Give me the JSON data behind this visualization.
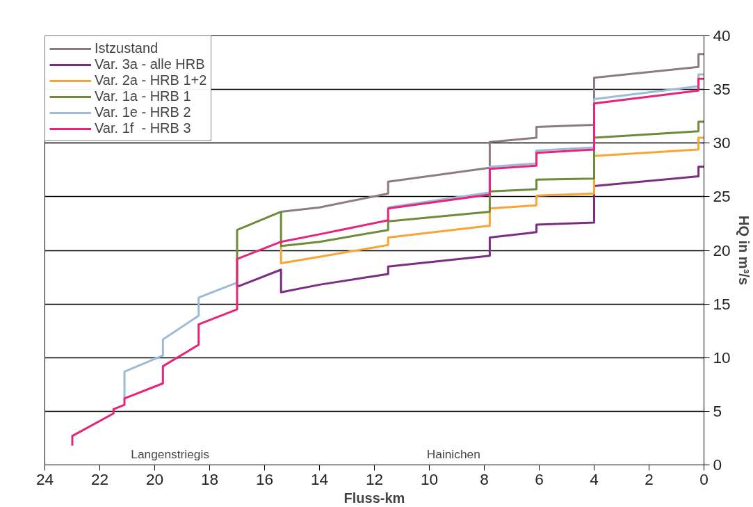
{
  "chart_data": {
    "type": "line",
    "xlabel": "Fluss-km",
    "ylabel": "HQ in m³/s",
    "xlim": [
      24,
      0
    ],
    "xticks": [
      24,
      22,
      20,
      18,
      16,
      14,
      12,
      10,
      8,
      6,
      4,
      2,
      0
    ],
    "ylim": [
      0,
      40
    ],
    "yticks": [
      0,
      5,
      10,
      15,
      20,
      25,
      30,
      35,
      40
    ],
    "grid": "y",
    "legend": "top left",
    "line_style": "solid",
    "series": [
      {
        "name": "Istzustand",
        "color": "#8c7b86",
        "x": [
          15.4,
          14,
          11.5,
          11.5,
          7.8,
          7.8,
          6.1,
          6.1,
          4.0,
          4.0,
          0.2,
          0.2,
          0
        ],
        "values": [
          23.6,
          24.0,
          25.3,
          26.4,
          27.7,
          30.1,
          30.5,
          31.5,
          31.7,
          36.1,
          37.1,
          38.3,
          38.3
        ]
      },
      {
        "name": "Var. 3a - alle HRB",
        "color": "#7b2d83",
        "x": [
          17,
          15.4,
          15.4,
          14,
          11.5,
          11.5,
          7.8,
          7.8,
          6.1,
          6.1,
          4.0,
          4.0,
          0.2,
          0.2,
          0
        ],
        "values": [
          16.6,
          18.2,
          16.1,
          16.8,
          17.8,
          18.5,
          19.5,
          21.2,
          21.7,
          22.4,
          22.6,
          26.0,
          26.9,
          27.8,
          27.8
        ]
      },
      {
        "name": "Var. 2a - HRB 1+2",
        "color": "#f7a533",
        "x": [
          15.4,
          15.4,
          14,
          11.5,
          11.5,
          7.8,
          7.8,
          6.1,
          6.1,
          4.0,
          4.0,
          0.2,
          0.2,
          0
        ],
        "values": [
          20.4,
          18.8,
          19.4,
          20.5,
          21.2,
          22.3,
          23.9,
          24.2,
          25.1,
          25.3,
          28.8,
          29.4,
          30.5,
          30.5
        ]
      },
      {
        "name": "Var. 1a - HRB 1",
        "color": "#6e8a3a",
        "x": [
          17,
          17,
          15.4,
          15.4,
          14,
          11.5,
          11.5,
          7.8,
          7.8,
          6.1,
          6.1,
          4.0,
          4.0,
          0.2,
          0.2,
          0
        ],
        "values": [
          16.6,
          21.9,
          23.6,
          20.4,
          20.8,
          21.9,
          22.7,
          23.6,
          25.5,
          25.7,
          26.6,
          26.7,
          30.5,
          31.1,
          32.0,
          32.0
        ]
      },
      {
        "name": "Var. 1e - HRB 2",
        "color": "#9bbbd9",
        "x": [
          21.1,
          21.1,
          19.7,
          19.7,
          18.4,
          18.4,
          17,
          null,
          11.5,
          7.8,
          7.8,
          6.1,
          6.1,
          4.0,
          4.0,
          0.2,
          0.2,
          0
        ],
        "values": [
          6.2,
          8.7,
          10.2,
          11.7,
          13.9,
          15.6,
          17.0,
          null,
          24.0,
          25.4,
          27.8,
          28.1,
          29.3,
          29.6,
          34.1,
          35.3,
          36.4,
          36.4
        ]
      },
      {
        "name": "Var. 1f  - HRB 3",
        "color": "#e5247a",
        "x": [
          23,
          23,
          21.5,
          21.5,
          21.1,
          21.1,
          19.7,
          19.7,
          18.4,
          18.4,
          17,
          17,
          15.4,
          14,
          11.5,
          11.5,
          7.8,
          7.8,
          6.1,
          6.1,
          4.0,
          4.0,
          0.2,
          0.2,
          0
        ],
        "values": [
          1.8,
          2.7,
          4.8,
          5.2,
          5.6,
          6.2,
          7.6,
          9.2,
          11.2,
          13.1,
          14.5,
          19.2,
          20.8,
          21.5,
          22.8,
          23.9,
          25.2,
          27.6,
          27.9,
          29.1,
          29.4,
          33.7,
          34.9,
          36.0,
          36.0
        ]
      }
    ],
    "annotations": [
      "Langenstriegis",
      "Hainichen"
    ]
  }
}
